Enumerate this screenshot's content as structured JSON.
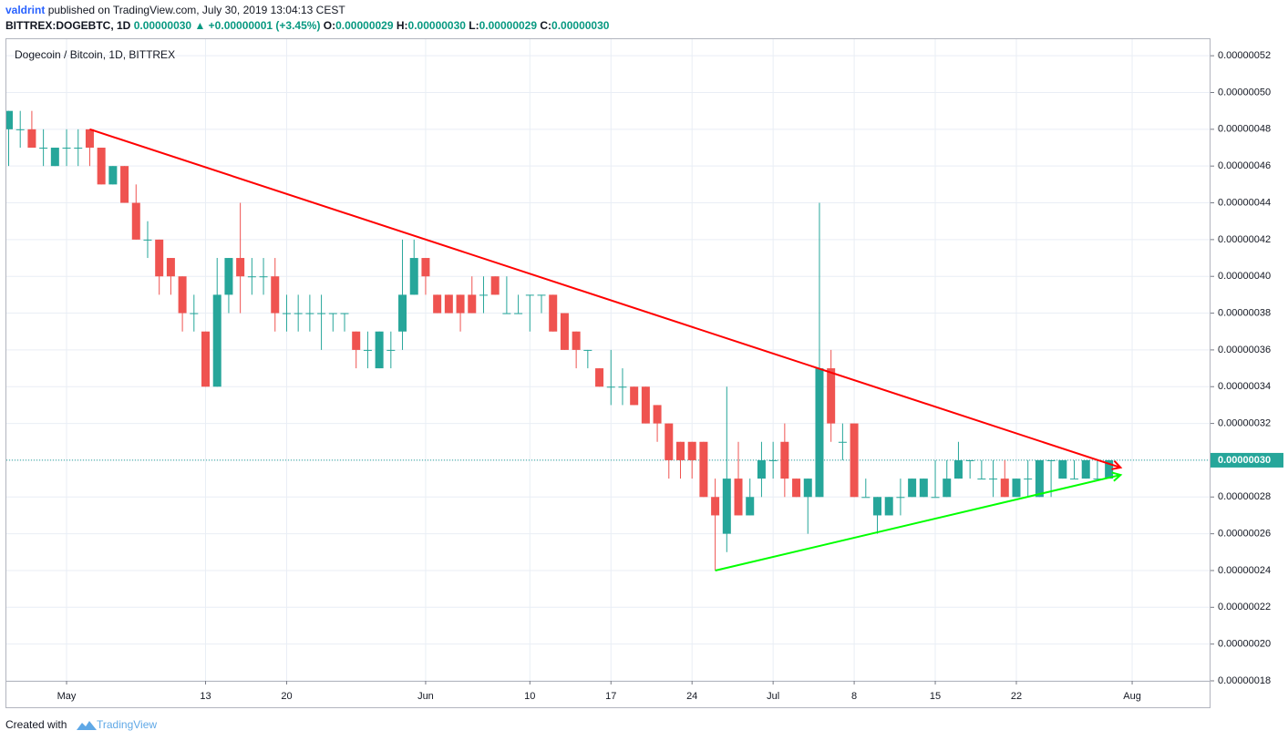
{
  "header": {
    "author": "valdrint",
    "published": "published on TradingView.com, July 30, 2019 13:04:13 CEST",
    "symbol": "BITTREX:DOGEBTC, 1D",
    "last": "0.00000030",
    "change": "+0.00000001 (+3.45%)",
    "ohlc": [
      {
        "key": "O:",
        "value": "0.00000029"
      },
      {
        "key": "H:",
        "value": "0.00000030"
      },
      {
        "key": "L:",
        "value": "0.00000029"
      },
      {
        "key": "C:",
        "value": "0.00000030"
      }
    ]
  },
  "footer": {
    "created": "Created with",
    "brand": "TradingView"
  },
  "chart_data": {
    "type": "candlestick",
    "title": "Dogecoin / Bitcoin, 1D, BITTREX",
    "up_color": "#26a69a",
    "down_color": "#ef5350",
    "grid": true,
    "x": [
      "2019-04-26",
      "2019-04-27",
      "2019-04-28",
      "2019-04-29",
      "2019-04-30",
      "2019-05-01",
      "2019-05-02",
      "2019-05-03",
      "2019-05-04",
      "2019-05-05",
      "2019-05-06",
      "2019-05-07",
      "2019-05-08",
      "2019-05-09",
      "2019-05-10",
      "2019-05-11",
      "2019-05-12",
      "2019-05-13",
      "2019-05-14",
      "2019-05-15",
      "2019-05-16",
      "2019-05-17",
      "2019-05-18",
      "2019-05-19",
      "2019-05-20",
      "2019-05-21",
      "2019-05-22",
      "2019-05-23",
      "2019-05-24",
      "2019-05-25",
      "2019-05-26",
      "2019-05-27",
      "2019-05-28",
      "2019-05-29",
      "2019-05-30",
      "2019-05-31",
      "2019-06-01",
      "2019-06-02",
      "2019-06-03",
      "2019-06-04",
      "2019-06-05",
      "2019-06-06",
      "2019-06-07",
      "2019-06-08",
      "2019-06-09",
      "2019-06-10",
      "2019-06-11",
      "2019-06-12",
      "2019-06-13",
      "2019-06-14",
      "2019-06-15",
      "2019-06-16",
      "2019-06-17",
      "2019-06-18",
      "2019-06-19",
      "2019-06-20",
      "2019-06-21",
      "2019-06-22",
      "2019-06-23",
      "2019-06-24",
      "2019-06-25",
      "2019-06-26",
      "2019-06-27",
      "2019-06-28",
      "2019-06-29",
      "2019-06-30",
      "2019-07-01",
      "2019-07-02",
      "2019-07-03",
      "2019-07-04",
      "2019-07-05",
      "2019-07-06",
      "2019-07-07",
      "2019-07-08",
      "2019-07-09",
      "2019-07-10",
      "2019-07-11",
      "2019-07-12",
      "2019-07-13",
      "2019-07-14",
      "2019-07-15",
      "2019-07-16",
      "2019-07-17",
      "2019-07-18",
      "2019-07-19",
      "2019-07-20",
      "2019-07-21",
      "2019-07-22",
      "2019-07-23",
      "2019-07-24",
      "2019-07-25",
      "2019-07-26",
      "2019-07-27",
      "2019-07-28",
      "2019-07-29",
      "2019-07-30"
    ],
    "open": [
      4.8e-07,
      4.8e-07,
      4.8e-07,
      4.7e-07,
      4.6e-07,
      4.7e-07,
      4.7e-07,
      4.8e-07,
      4.7e-07,
      4.5e-07,
      4.6e-07,
      4.4e-07,
      4.2e-07,
      4.2e-07,
      4.1e-07,
      4e-07,
      3.8e-07,
      3.7e-07,
      3.4e-07,
      3.9e-07,
      4.1e-07,
      4e-07,
      4e-07,
      4e-07,
      3.8e-07,
      3.8e-07,
      3.8e-07,
      3.8e-07,
      3.8e-07,
      3.8e-07,
      3.7e-07,
      3.6e-07,
      3.5e-07,
      3.6e-07,
      3.7e-07,
      3.9e-07,
      4.1e-07,
      3.9e-07,
      3.9e-07,
      3.9e-07,
      3.9e-07,
      3.9e-07,
      4e-07,
      3.8e-07,
      3.8e-07,
      3.9e-07,
      3.9e-07,
      3.9e-07,
      3.8e-07,
      3.7e-07,
      3.6e-07,
      3.5e-07,
      3.4e-07,
      3.4e-07,
      3.4e-07,
      3.4e-07,
      3.3e-07,
      3.2e-07,
      3.1e-07,
      3.1e-07,
      3.1e-07,
      2.8e-07,
      2.6e-07,
      2.9e-07,
      2.7e-07,
      2.9e-07,
      3e-07,
      3.1e-07,
      2.9e-07,
      2.8e-07,
      2.8e-07,
      3.5e-07,
      3.1e-07,
      3.2e-07,
      2.8e-07,
      2.7e-07,
      2.7e-07,
      2.8e-07,
      2.8e-07,
      2.8e-07,
      2.8e-07,
      2.8e-07,
      2.9e-07,
      3e-07,
      2.9e-07,
      2.9e-07,
      2.9e-07,
      2.8e-07,
      2.9e-07,
      2.8e-07,
      3e-07,
      2.9e-07,
      2.9e-07,
      2.9e-07,
      2.9e-07,
      2.9e-07
    ],
    "high": [
      4.9e-07,
      4.9e-07,
      4.9e-07,
      4.8e-07,
      4.7e-07,
      4.8e-07,
      4.8e-07,
      4.8e-07,
      4.7e-07,
      4.6e-07,
      4.6e-07,
      4.5e-07,
      4.3e-07,
      4.2e-07,
      4.1e-07,
      4e-07,
      3.9e-07,
      3.7e-07,
      4.1e-07,
      4.1e-07,
      4.4e-07,
      4.1e-07,
      4.1e-07,
      4.1e-07,
      3.9e-07,
      3.9e-07,
      3.9e-07,
      3.9e-07,
      3.8e-07,
      3.8e-07,
      3.7e-07,
      3.7e-07,
      3.7e-07,
      3.7e-07,
      4.2e-07,
      4.2e-07,
      4.1e-07,
      3.9e-07,
      3.9e-07,
      3.9e-07,
      4e-07,
      4e-07,
      4e-07,
      4e-07,
      3.9e-07,
      3.9e-07,
      3.9e-07,
      3.9e-07,
      3.8e-07,
      3.7e-07,
      3.6e-07,
      3.5e-07,
      3.6e-07,
      3.5e-07,
      3.4e-07,
      3.4e-07,
      3.3e-07,
      3.2e-07,
      3.1e-07,
      3.1e-07,
      3.1e-07,
      2.9e-07,
      3.4e-07,
      3.1e-07,
      2.9e-07,
      3.1e-07,
      3.1e-07,
      3.2e-07,
      2.9e-07,
      2.9e-07,
      4.4e-07,
      3.6e-07,
      3.2e-07,
      3.2e-07,
      2.9e-07,
      2.8e-07,
      2.8e-07,
      2.9e-07,
      2.9e-07,
      2.9e-07,
      3e-07,
      3e-07,
      3.1e-07,
      3e-07,
      3e-07,
      3e-07,
      3e-07,
      2.9e-07,
      3e-07,
      3e-07,
      3e-07,
      3e-07,
      3e-07,
      3e-07,
      3e-07,
      3e-07
    ],
    "low": [
      4.6e-07,
      4.7e-07,
      4.7e-07,
      4.6e-07,
      4.6e-07,
      4.6e-07,
      4.6e-07,
      4.6e-07,
      4.5e-07,
      4.5e-07,
      4.4e-07,
      4.2e-07,
      4.1e-07,
      3.9e-07,
      3.9e-07,
      3.7e-07,
      3.7e-07,
      3.4e-07,
      3.4e-07,
      3.8e-07,
      3.8e-07,
      3.9e-07,
      3.9e-07,
      3.7e-07,
      3.7e-07,
      3.7e-07,
      3.7e-07,
      3.6e-07,
      3.7e-07,
      3.7e-07,
      3.5e-07,
      3.5e-07,
      3.5e-07,
      3.5e-07,
      3.6e-07,
      3.9e-07,
      3.9e-07,
      3.8e-07,
      3.8e-07,
      3.7e-07,
      3.8e-07,
      3.8e-07,
      3.9e-07,
      3.8e-07,
      3.8e-07,
      3.7e-07,
      3.8e-07,
      3.7e-07,
      3.6e-07,
      3.5e-07,
      3.5e-07,
      3.4e-07,
      3.3e-07,
      3.3e-07,
      3.3e-07,
      3.2e-07,
      3.1e-07,
      2.9e-07,
      2.9e-07,
      2.9e-07,
      2.8e-07,
      2.4e-07,
      2.5e-07,
      2.7e-07,
      2.7e-07,
      2.8e-07,
      2.9e-07,
      2.8e-07,
      2.8e-07,
      2.6e-07,
      2.8e-07,
      3.1e-07,
      3e-07,
      2.8e-07,
      2.8e-07,
      2.6e-07,
      2.7e-07,
      2.7e-07,
      2.8e-07,
      2.8e-07,
      2.8e-07,
      2.8e-07,
      2.9e-07,
      2.9e-07,
      2.9e-07,
      2.8e-07,
      2.8e-07,
      2.8e-07,
      2.8e-07,
      2.8e-07,
      2.8e-07,
      2.9e-07,
      2.9e-07,
      2.9e-07,
      2.9e-07,
      2.9e-07
    ],
    "close": [
      4.9e-07,
      4.8e-07,
      4.7e-07,
      4.7e-07,
      4.7e-07,
      4.7e-07,
      4.7e-07,
      4.7e-07,
      4.5e-07,
      4.6e-07,
      4.4e-07,
      4.2e-07,
      4.2e-07,
      4e-07,
      4e-07,
      3.8e-07,
      3.8e-07,
      3.4e-07,
      3.9e-07,
      4.1e-07,
      4e-07,
      4e-07,
      4e-07,
      3.8e-07,
      3.8e-07,
      3.8e-07,
      3.8e-07,
      3.8e-07,
      3.8e-07,
      3.8e-07,
      3.6e-07,
      3.6e-07,
      3.7e-07,
      3.6e-07,
      3.9e-07,
      4.1e-07,
      4e-07,
      3.8e-07,
      3.8e-07,
      3.8e-07,
      3.8e-07,
      3.9e-07,
      3.9e-07,
      3.8e-07,
      3.8e-07,
      3.9e-07,
      3.9e-07,
      3.7e-07,
      3.6e-07,
      3.6e-07,
      3.6e-07,
      3.4e-07,
      3.4e-07,
      3.4e-07,
      3.3e-07,
      3.2e-07,
      3.2e-07,
      3e-07,
      3e-07,
      3e-07,
      2.8e-07,
      2.7e-07,
      2.9e-07,
      2.7e-07,
      2.8e-07,
      3e-07,
      3e-07,
      2.9e-07,
      2.8e-07,
      2.9e-07,
      3.5e-07,
      3.2e-07,
      3.1e-07,
      2.8e-07,
      2.8e-07,
      2.8e-07,
      2.8e-07,
      2.8e-07,
      2.9e-07,
      2.9e-07,
      2.8e-07,
      2.9e-07,
      3e-07,
      3e-07,
      2.9e-07,
      2.9e-07,
      2.8e-07,
      2.9e-07,
      2.9e-07,
      3e-07,
      3e-07,
      3e-07,
      2.9e-07,
      3e-07,
      2.9e-07,
      3e-07
    ],
    "xlim": [
      "2019-04-26",
      "2019-08-08"
    ],
    "xticks": [
      {
        "value": "2019-05-01",
        "label": "May"
      },
      {
        "value": "2019-05-13",
        "label": "13"
      },
      {
        "value": "2019-05-20",
        "label": "20"
      },
      {
        "value": "2019-06-01",
        "label": "Jun"
      },
      {
        "value": "2019-06-10",
        "label": "10"
      },
      {
        "value": "2019-06-17",
        "label": "17"
      },
      {
        "value": "2019-06-24",
        "label": "24"
      },
      {
        "value": "2019-07-01",
        "label": "Jul"
      },
      {
        "value": "2019-07-08",
        "label": "8"
      },
      {
        "value": "2019-07-15",
        "label": "15"
      },
      {
        "value": "2019-07-22",
        "label": "22"
      },
      {
        "value": "2019-08-01",
        "label": "Aug"
      }
    ],
    "ylim": [
      1.8e-07,
      5.29e-07
    ],
    "yticks": [
      {
        "value": 1.8e-07,
        "label": "0.00000018"
      },
      {
        "value": 2e-07,
        "label": "0.00000020"
      },
      {
        "value": 2.2e-07,
        "label": "0.00000022"
      },
      {
        "value": 2.4e-07,
        "label": "0.00000024"
      },
      {
        "value": 2.6e-07,
        "label": "0.00000026"
      },
      {
        "value": 2.8e-07,
        "label": "0.00000028"
      },
      {
        "value": 3e-07,
        "label": "0.00000030"
      },
      {
        "value": 3.2e-07,
        "label": "0.00000032"
      },
      {
        "value": 3.4e-07,
        "label": "0.00000034"
      },
      {
        "value": 3.6e-07,
        "label": "0.00000036"
      },
      {
        "value": 3.8e-07,
        "label": "0.00000038"
      },
      {
        "value": 4e-07,
        "label": "0.00000040"
      },
      {
        "value": 4.2e-07,
        "label": "0.00000042"
      },
      {
        "value": 4.4e-07,
        "label": "0.00000044"
      },
      {
        "value": 4.6e-07,
        "label": "0.00000046"
      },
      {
        "value": 4.8e-07,
        "label": "0.00000048"
      },
      {
        "value": 5e-07,
        "label": "0.00000050"
      },
      {
        "value": 5.2e-07,
        "label": "0.00000052"
      }
    ],
    "last_price": {
      "value": 3e-07,
      "label": "0.00000030"
    },
    "trendlines": [
      {
        "color": "#ff0000",
        "x": [
          "2019-05-03",
          "2019-07-31"
        ],
        "y": [
          4.8e-07,
          2.96e-07
        ]
      },
      {
        "color": "#00ff00",
        "x": [
          "2019-06-26",
          "2019-07-31"
        ],
        "y": [
          2.4e-07,
          2.92e-07
        ]
      }
    ]
  }
}
